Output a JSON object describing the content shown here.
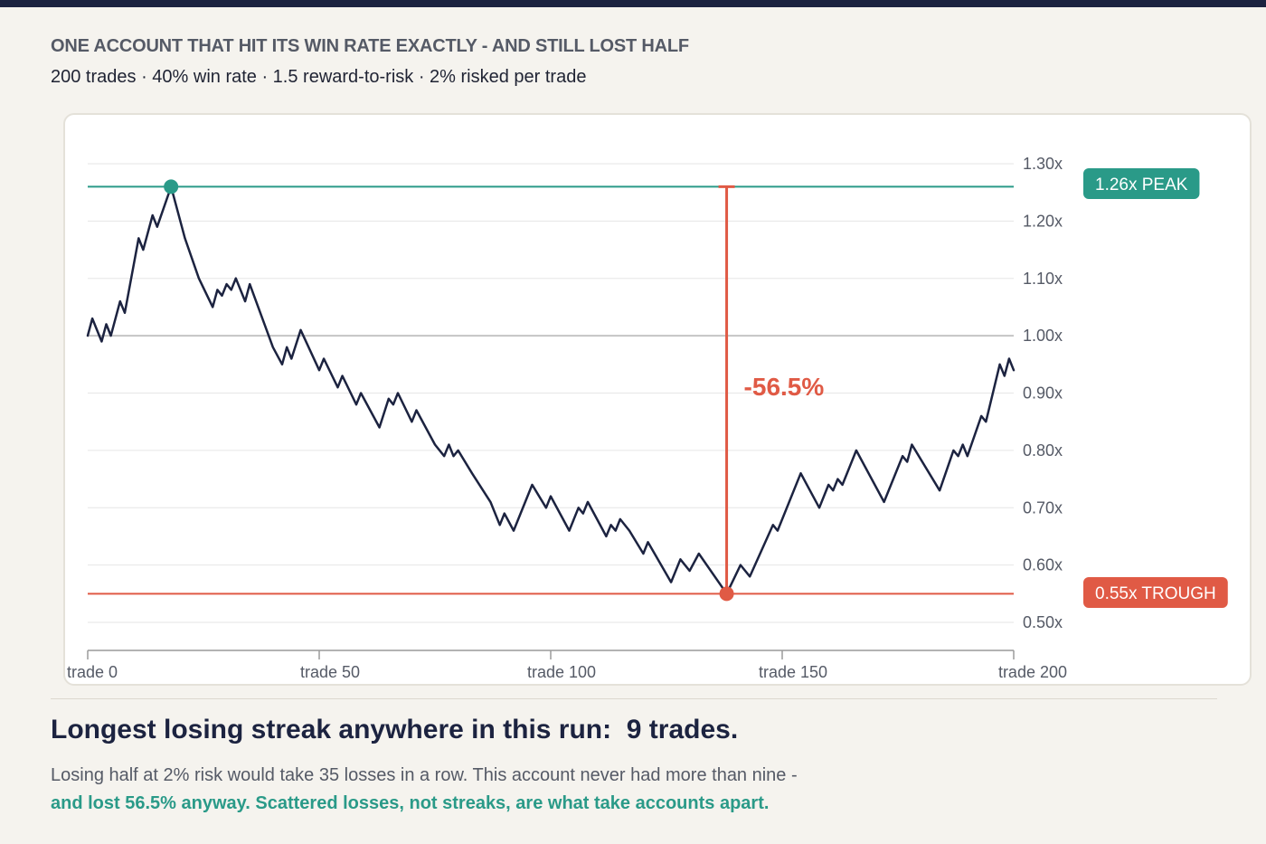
{
  "header": {
    "kicker": "ONE ACCOUNT THAT HIT ITS WIN RATE EXACTLY - AND STILL LOST HALF",
    "subtitle": "200 trades · 40% win rate · 1.5 reward-to-risk · 2% risked per trade"
  },
  "colors": {
    "line": "#1c2340",
    "peak": "#2a9a88",
    "trough": "#e05a45",
    "grid": "#e6e6e6",
    "baseline": "#c4c4c4",
    "axis": "#9a9a9a",
    "tick_text": "#555a66"
  },
  "chart_data": {
    "type": "line",
    "title": "",
    "xlabel": "",
    "ylabel": "",
    "xlim": [
      0,
      200
    ],
    "ylim": [
      0.5,
      1.3
    ],
    "grid": true,
    "baseline": 1.0,
    "y_ticks": [
      {
        "value": 1.3,
        "label": "1.30x"
      },
      {
        "value": 1.2,
        "label": "1.20x"
      },
      {
        "value": 1.1,
        "label": "1.10x"
      },
      {
        "value": 1.0,
        "label": "1.00x"
      },
      {
        "value": 0.9,
        "label": "0.90x"
      },
      {
        "value": 0.8,
        "label": "0.80x"
      },
      {
        "value": 0.7,
        "label": "0.70x"
      },
      {
        "value": 0.6,
        "label": "0.60x"
      },
      {
        "value": 0.5,
        "label": "0.50x"
      }
    ],
    "x_ticks": [
      {
        "value": 0,
        "label": "trade 0"
      },
      {
        "value": 50,
        "label": "trade 50"
      },
      {
        "value": 100,
        "label": "trade 100"
      },
      {
        "value": 150,
        "label": "trade 150"
      },
      {
        "value": 200,
        "label": "trade 200"
      }
    ],
    "series": [
      {
        "points": [
          [
            0,
            1.0
          ],
          [
            1,
            1.03
          ],
          [
            3,
            0.99
          ],
          [
            4,
            1.02
          ],
          [
            5,
            1.0
          ],
          [
            7,
            1.06
          ],
          [
            8,
            1.04
          ],
          [
            11,
            1.17
          ],
          [
            12,
            1.15
          ],
          [
            14,
            1.21
          ],
          [
            15,
            1.19
          ],
          [
            18,
            1.26
          ],
          [
            21,
            1.17
          ],
          [
            24,
            1.1
          ],
          [
            27,
            1.05
          ],
          [
            28,
            1.08
          ],
          [
            29,
            1.07
          ],
          [
            30,
            1.09
          ],
          [
            31,
            1.08
          ],
          [
            32,
            1.1
          ],
          [
            34,
            1.06
          ],
          [
            35,
            1.09
          ],
          [
            40,
            0.98
          ],
          [
            42,
            0.95
          ],
          [
            43,
            0.98
          ],
          [
            44,
            0.96
          ],
          [
            46,
            1.01
          ],
          [
            50,
            0.94
          ],
          [
            51,
            0.96
          ],
          [
            54,
            0.91
          ],
          [
            55,
            0.93
          ],
          [
            58,
            0.88
          ],
          [
            59,
            0.9
          ],
          [
            63,
            0.84
          ],
          [
            65,
            0.89
          ],
          [
            66,
            0.88
          ],
          [
            67,
            0.9
          ],
          [
            70,
            0.85
          ],
          [
            71,
            0.87
          ],
          [
            75,
            0.81
          ],
          [
            77,
            0.79
          ],
          [
            78,
            0.81
          ],
          [
            79,
            0.79
          ],
          [
            80,
            0.8
          ],
          [
            83,
            0.76
          ],
          [
            87,
            0.71
          ],
          [
            89,
            0.67
          ],
          [
            90,
            0.69
          ],
          [
            92,
            0.66
          ],
          [
            96,
            0.74
          ],
          [
            99,
            0.7
          ],
          [
            100,
            0.72
          ],
          [
            104,
            0.66
          ],
          [
            106,
            0.7
          ],
          [
            107,
            0.69
          ],
          [
            108,
            0.71
          ],
          [
            112,
            0.65
          ],
          [
            113,
            0.67
          ],
          [
            114,
            0.66
          ],
          [
            115,
            0.68
          ],
          [
            117,
            0.66
          ],
          [
            120,
            0.62
          ],
          [
            121,
            0.64
          ],
          [
            126,
            0.57
          ],
          [
            128,
            0.61
          ],
          [
            130,
            0.59
          ],
          [
            132,
            0.62
          ],
          [
            138,
            0.55
          ],
          [
            141,
            0.6
          ],
          [
            143,
            0.58
          ],
          [
            148,
            0.67
          ],
          [
            149,
            0.66
          ],
          [
            154,
            0.76
          ],
          [
            158,
            0.7
          ],
          [
            160,
            0.74
          ],
          [
            161,
            0.73
          ],
          [
            162,
            0.75
          ],
          [
            163,
            0.74
          ],
          [
            166,
            0.8
          ],
          [
            172,
            0.71
          ],
          [
            176,
            0.79
          ],
          [
            177,
            0.78
          ],
          [
            178,
            0.81
          ],
          [
            184,
            0.73
          ],
          [
            187,
            0.8
          ],
          [
            188,
            0.79
          ],
          [
            189,
            0.81
          ],
          [
            190,
            0.79
          ],
          [
            193,
            0.86
          ],
          [
            194,
            0.85
          ],
          [
            197,
            0.95
          ],
          [
            198,
            0.93
          ],
          [
            199,
            0.96
          ],
          [
            200,
            0.94
          ]
        ]
      }
    ],
    "peak": {
      "x": 18,
      "y": 1.26,
      "label": "1.26x PEAK"
    },
    "trough": {
      "x": 138,
      "y": 0.55,
      "label": "0.55x TROUGH"
    },
    "drawdown": {
      "x": 138,
      "from": 1.26,
      "to": 0.55,
      "label": "-56.5%"
    }
  },
  "footer": {
    "headline": "Longest losing streak anywhere in this run:  9 trades.",
    "line1": "Losing half at 2% risk would take 35 losses in a row. This account never had more than nine -",
    "line2": "and lost 56.5% anyway. Scattered losses, not streaks, are what take accounts apart."
  }
}
